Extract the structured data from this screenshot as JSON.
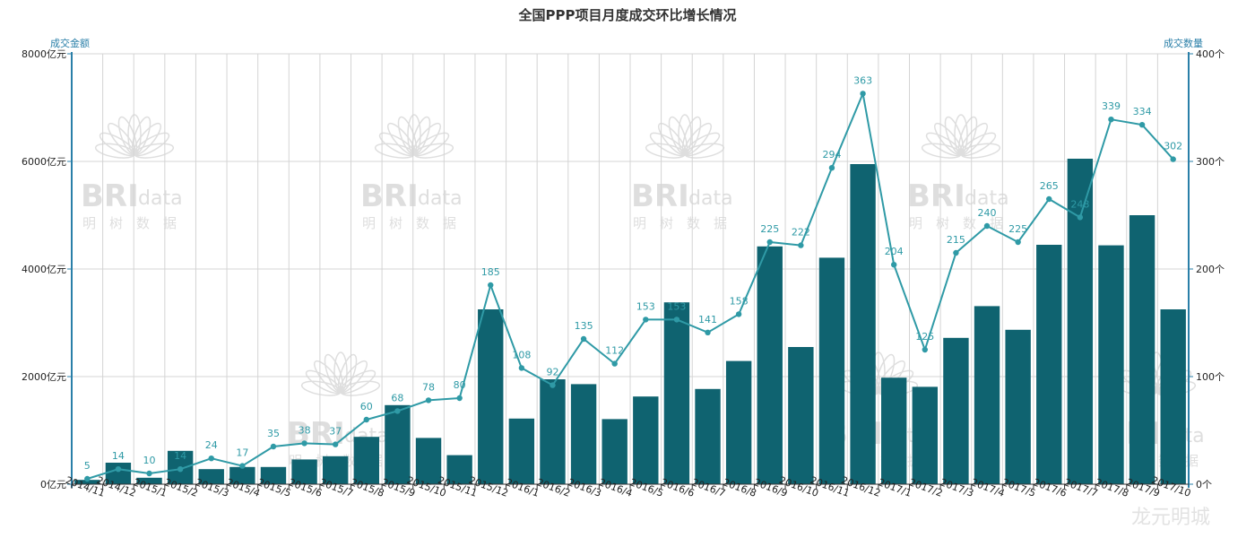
{
  "chart_data": {
    "type": "bar",
    "title": "全国PPP项目月度成交环比增长情况",
    "left_axis_title": "成交金额",
    "right_axis_title": "成交数量",
    "categories": [
      "2014/11",
      "2014/12",
      "2015/1",
      "2015/2",
      "2015/3",
      "2015/4",
      "2015/5",
      "2015/6",
      "2015/7",
      "2015/8",
      "2015/9",
      "2015/10",
      "2015/11",
      "2015/12",
      "2016/1",
      "2016/2",
      "2016/3",
      "2016/4",
      "2016/5",
      "2016/6",
      "2016/7",
      "2016/8",
      "2016/9",
      "2016/10",
      "2016/11",
      "2016/12",
      "2017/1",
      "2017/2",
      "2017/3",
      "2017/4",
      "2017/5",
      "2017/6",
      "2017/7",
      "2017/8",
      "2017/9",
      "2017/10"
    ],
    "left_ylim": [
      0,
      8000
    ],
    "left_ticks": [
      "0亿元",
      "2000亿元",
      "4000亿元",
      "6000亿元",
      "8000亿元"
    ],
    "left_tick_values": [
      0,
      2000,
      4000,
      6000,
      8000
    ],
    "right_ylim": [
      0,
      400
    ],
    "right_ticks": [
      "0个",
      "100个",
      "200个",
      "300个",
      "400个"
    ],
    "right_tick_values": [
      0,
      100,
      200,
      300,
      400
    ],
    "grid": true,
    "series": [
      {
        "type": "bar",
        "axis": "left",
        "color": "#0f6370",
        "values": [
          80,
          400,
          120,
          620,
          280,
          320,
          320,
          460,
          520,
          880,
          1470,
          860,
          540,
          3250,
          1220,
          1950,
          1860,
          1210,
          1630,
          3380,
          1770,
          2290,
          4420,
          2550,
          4210,
          5950,
          1980,
          1810,
          2720,
          3310,
          2870,
          4450,
          6050,
          4440,
          5000,
          3250
        ]
      },
      {
        "type": "line",
        "axis": "right",
        "color": "#2f9aa6",
        "values": [
          5,
          14,
          10,
          14,
          24,
          17,
          35,
          38,
          37,
          60,
          68,
          78,
          80,
          185,
          108,
          92,
          135,
          112,
          153,
          153,
          141,
          158,
          225,
          222,
          294,
          363,
          204,
          125,
          215,
          240,
          225,
          265,
          248,
          339,
          334,
          302
        ],
        "labels": [
          "5",
          "14",
          "10",
          "14",
          "24",
          "17",
          "35",
          "38",
          "37",
          "60",
          "68",
          "78",
          "80",
          "185",
          "108",
          "92",
          "135",
          "112",
          "153",
          "153",
          "141",
          "158",
          "225",
          "222",
          "294",
          "363",
          "204",
          "125",
          "215",
          "240",
          "225",
          "265",
          "248",
          "339",
          "334",
          "302"
        ]
      }
    ]
  },
  "watermark": {
    "logo_text": "BRI",
    "logo_suffix": "data",
    "logo_subtitle": [
      "明",
      "树",
      "数",
      "据"
    ],
    "corner_text": "龙元明城"
  }
}
